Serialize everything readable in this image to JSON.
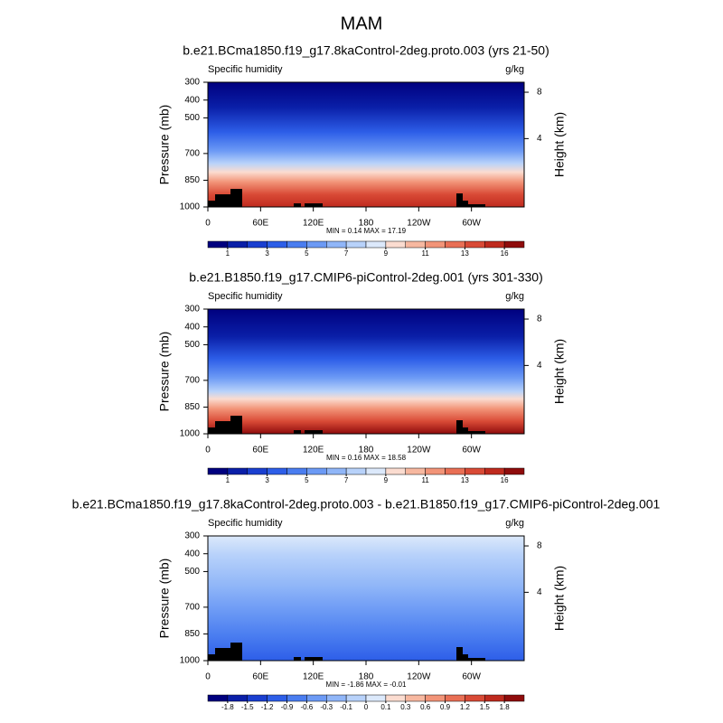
{
  "title": "MAM",
  "chart_data": [
    {
      "type": "contour",
      "title": "b.e21.BCma1850.f19_g17.8kaControl-2deg.proto.003 (yrs 21-50)",
      "left_label": "Specific humidity",
      "right_label": "g/kg",
      "ylabel": "Pressure (mb)",
      "y2label": "Height (km)",
      "xlim": [
        0,
        360
      ],
      "xticks": [
        0,
        {
          "value": 60,
          "label": "60E"
        },
        {
          "value": 120,
          "label": "120E"
        },
        180,
        {
          "value": 240,
          "label": "120W"
        },
        {
          "value": 300,
          "label": "60W"
        }
      ],
      "ylim": [
        1000,
        300
      ],
      "yticks": [
        300,
        400,
        500,
        700,
        850,
        1000
      ],
      "y2ticks": [
        4,
        8
      ],
      "stats": "MIN =  0.14  MAX =  17.19",
      "colorbar": {
        "colors": [
          "#00007f",
          "#0a1fa8",
          "#1a3fd0",
          "#2d5ee8",
          "#4a7df0",
          "#6c9af5",
          "#90b6f8",
          "#b8d2fa",
          "#dce9fb",
          "#fbdcd0",
          "#f7b8a0",
          "#f29478",
          "#e96f55",
          "#d94a36",
          "#bf2a1e",
          "#8f0c0c"
        ],
        "ticks": [
          1,
          3,
          5,
          7,
          9,
          11,
          13,
          16
        ]
      }
    },
    {
      "type": "contour",
      "title": "b.e21.B1850.f19_g17.CMIP6-piControl-2deg.001 (yrs 301-330)",
      "left_label": "Specific humidity",
      "right_label": "g/kg",
      "ylabel": "Pressure (mb)",
      "y2label": "Height (km)",
      "xlim": [
        0,
        360
      ],
      "xticks": [
        0,
        {
          "value": 60,
          "label": "60E"
        },
        {
          "value": 120,
          "label": "120E"
        },
        180,
        {
          "value": 240,
          "label": "120W"
        },
        {
          "value": 300,
          "label": "60W"
        }
      ],
      "ylim": [
        1000,
        300
      ],
      "yticks": [
        300,
        400,
        500,
        700,
        850,
        1000
      ],
      "y2ticks": [
        4,
        8
      ],
      "stats": "MIN =  0.16  MAX =  18.58",
      "colorbar": {
        "colors": [
          "#00007f",
          "#0a1fa8",
          "#1a3fd0",
          "#2d5ee8",
          "#4a7df0",
          "#6c9af5",
          "#90b6f8",
          "#b8d2fa",
          "#dce9fb",
          "#fbdcd0",
          "#f7b8a0",
          "#f29478",
          "#e96f55",
          "#d94a36",
          "#bf2a1e",
          "#8f0c0c"
        ],
        "ticks": [
          1,
          3,
          5,
          7,
          9,
          11,
          13,
          16
        ]
      }
    },
    {
      "type": "contour",
      "title": "b.e21.BCma1850.f19_g17.8kaControl-2deg.proto.003 - b.e21.B1850.f19_g17.CMIP6-piControl-2deg.001",
      "left_label": "Specific humidity",
      "right_label": "g/kg",
      "ylabel": "Pressure (mb)",
      "y2label": "Height (km)",
      "xlim": [
        0,
        360
      ],
      "xticks": [
        0,
        {
          "value": 60,
          "label": "60E"
        },
        {
          "value": 120,
          "label": "120E"
        },
        180,
        {
          "value": 240,
          "label": "120W"
        },
        {
          "value": 300,
          "label": "60W"
        }
      ],
      "ylim": [
        1000,
        300
      ],
      "yticks": [
        300,
        400,
        500,
        700,
        850,
        1000
      ],
      "y2ticks": [
        4,
        8
      ],
      "stats": "MIN =  -1.86  MAX =  -0.01",
      "colorbar": {
        "colors": [
          "#00007f",
          "#0a1fa8",
          "#1a3fd0",
          "#2d5ee8",
          "#4a7df0",
          "#6c9af5",
          "#90b6f8",
          "#b8d2fa",
          "#dce9fb",
          "#fbdcd0",
          "#f7b8a0",
          "#f29478",
          "#e96f55",
          "#d94a36",
          "#bf2a1e",
          "#8f0c0c"
        ],
        "ticks": [
          -1.8,
          -1.5,
          -1.2,
          -0.9,
          -0.6,
          -0.3,
          -0.1,
          0,
          0.1,
          0.3,
          0.6,
          0.9,
          1.2,
          1.5,
          1.8
        ]
      }
    }
  ]
}
